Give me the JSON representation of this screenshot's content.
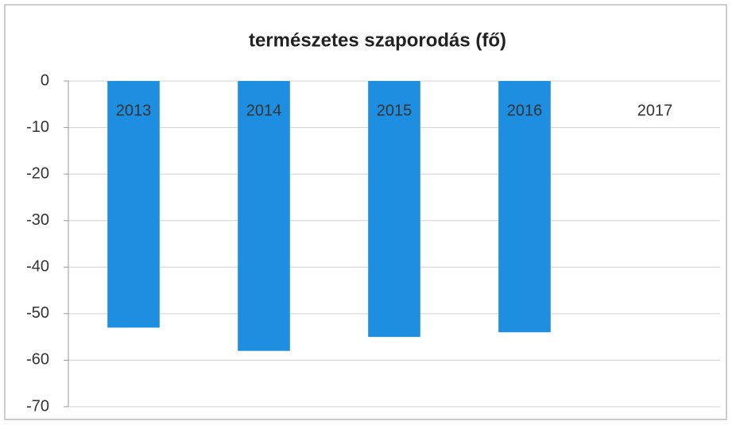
{
  "chart_data": {
    "type": "bar",
    "title": "természetes szaporodás (fő)",
    "categories": [
      "2013",
      "2014",
      "2015",
      "2016",
      "2017"
    ],
    "values": [
      -53,
      -58,
      -55,
      -54,
      null
    ],
    "color": "#1e8fe0",
    "ylim": [
      -70,
      0
    ],
    "yticks": [
      0,
      -10,
      -20,
      -30,
      -40,
      -50,
      -60,
      -70
    ],
    "grid": true
  }
}
